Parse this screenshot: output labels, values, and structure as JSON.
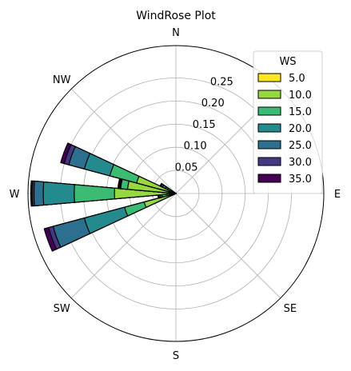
{
  "chart_data": {
    "type": "windrose",
    "title": "WindRose Plot",
    "direction_labels": [
      "N",
      "NW",
      "W",
      "SW",
      "S",
      "SE",
      "E"
    ],
    "radial_ticks": [
      "0.05",
      "0.10",
      "0.15",
      "0.20",
      "0.25"
    ],
    "radial_tick_values": [
      0.05,
      0.1,
      0.15,
      0.2,
      0.25
    ],
    "rmax": 0.32,
    "grid": true,
    "legend": {
      "title": "WS",
      "placement": "top-right",
      "entries": [
        "5.0",
        "10.0",
        "15.0",
        "20.0",
        "25.0",
        "30.0",
        "35.0"
      ],
      "colors": [
        "#fde725",
        "#95d840",
        "#3cbb75",
        "#238a8d",
        "#2d6f8e",
        "#453882",
        "#440154"
      ]
    },
    "sector_width_deg": 10,
    "directions_deg": [
      250,
      260,
      270,
      280,
      290,
      300
    ],
    "bins_cumulative": [
      [
        0.008,
        0.071,
        0.115,
        0.205,
        0.275,
        0.285,
        0.295
      ],
      [
        0.005,
        0.01,
        0.03,
        0.034,
        0.037,
        0.038,
        0.039
      ],
      [
        0.008,
        0.133,
        0.22,
        0.287,
        0.307,
        0.311,
        0.314
      ],
      [
        0.005,
        0.105,
        0.12,
        0.122,
        0.124,
        0.125,
        0.126
      ],
      [
        0.008,
        0.088,
        0.148,
        0.205,
        0.24,
        0.25,
        0.258
      ],
      [
        0.005,
        0.01,
        0.02,
        0.025,
        0.032,
        0.036,
        0.038
      ]
    ]
  }
}
